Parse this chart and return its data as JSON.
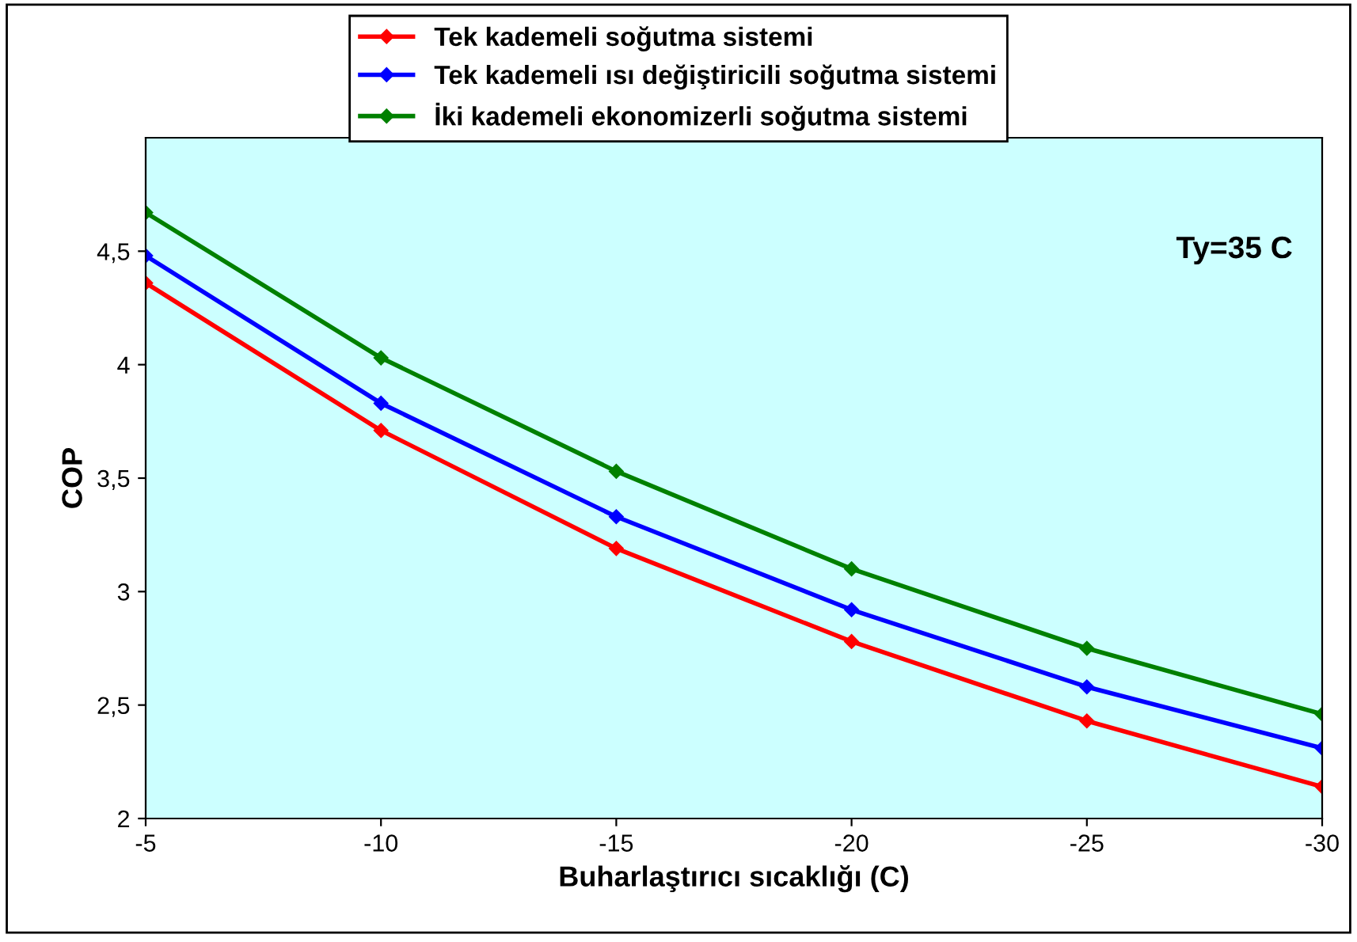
{
  "chart_data": {
    "type": "line",
    "xlabel": "Buharlaştırıcı sıcaklığı (C)",
    "ylabel": "COP",
    "x": [
      -5,
      -10,
      -15,
      -20,
      -25,
      -30
    ],
    "series": [
      {
        "name": "Tek kademeli soğutma sistemi",
        "color": "#ff0000",
        "values": [
          4.36,
          3.71,
          3.19,
          2.78,
          2.43,
          2.14
        ]
      },
      {
        "name": "Tek kademeli ısı değiştiricili soğutma sistemi",
        "color": "#0000ff",
        "values": [
          4.48,
          3.83,
          3.33,
          2.92,
          2.58,
          2.31
        ]
      },
      {
        "name": "İki kademeli ekonomizerli soğutma sistemi",
        "color": "#008000",
        "values": [
          4.67,
          4.03,
          3.53,
          3.1,
          2.75,
          2.46
        ]
      }
    ],
    "xlim": [
      -5,
      -30
    ],
    "xticks": [
      -5,
      -10,
      -15,
      -20,
      -25,
      -30
    ],
    "ylim": [
      2,
      5
    ],
    "yticks": [
      {
        "value": 2,
        "label": "2"
      },
      {
        "value": 2.5,
        "label": "2,5"
      },
      {
        "value": 3,
        "label": "3"
      },
      {
        "value": 3.5,
        "label": "3,5"
      },
      {
        "value": 4,
        "label": "4"
      },
      {
        "value": 4.5,
        "label": "4,5"
      }
    ],
    "annotations": [
      "Ty=35 C"
    ],
    "grid": false,
    "legend": "top",
    "marker": "diamond",
    "line_style": "solid"
  }
}
